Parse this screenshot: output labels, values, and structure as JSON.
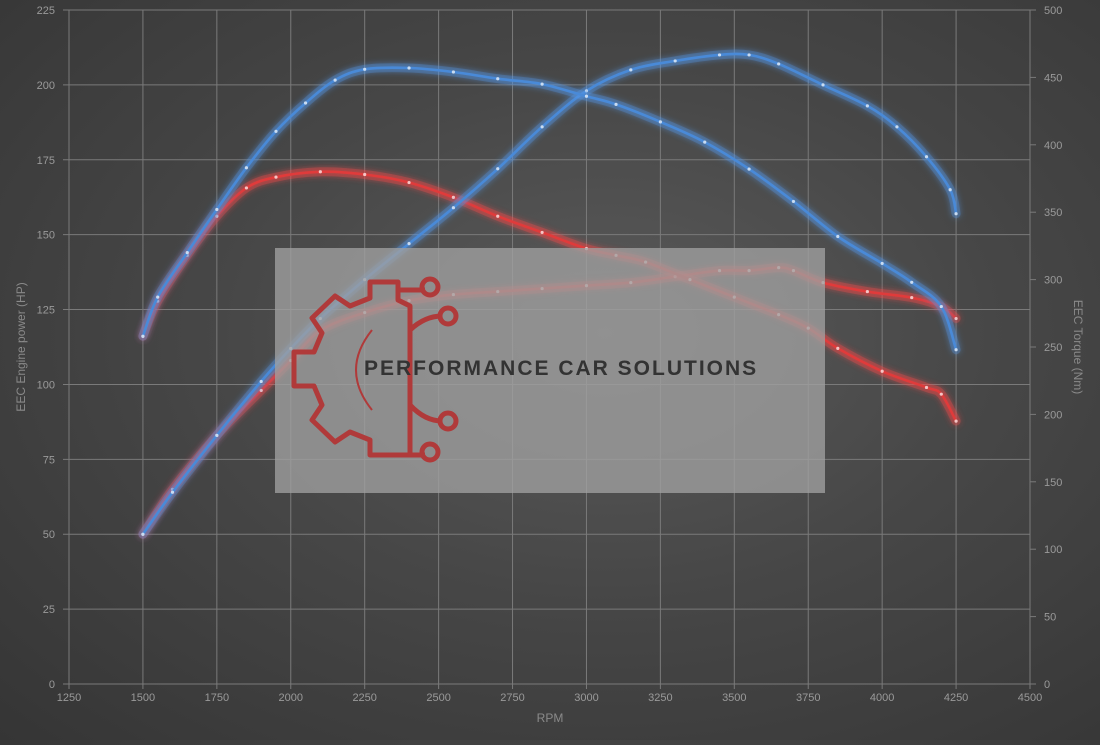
{
  "colors": {
    "background": "#474747",
    "grid": "#7a7a7a",
    "tick_text": "#9a9a9a",
    "power_color": "#e03a3a",
    "torque_color": "#4a8ad8",
    "watermark_box": "#a0a0a0",
    "logo_color": "#b03a3a"
  },
  "watermark": {
    "text": "PERFORMANCE CAR SOLUTIONS",
    "logo": "gear-circuit-icon"
  },
  "chart_data": {
    "type": "line",
    "title": "",
    "xlabel": "RPM",
    "ylabel_left": "EEC Engine power (HP)",
    "ylabel_right": "EEC Torque (Nm)",
    "xlim": [
      1250,
      4500
    ],
    "ylim_left": [
      0,
      225
    ],
    "ylim_right": [
      0,
      500
    ],
    "x_ticks": [
      1250,
      1500,
      1750,
      2000,
      2250,
      2500,
      2750,
      3000,
      3250,
      3500,
      3750,
      4000,
      4250,
      4500
    ],
    "y_left_ticks": [
      0,
      25,
      50,
      75,
      100,
      125,
      150,
      175,
      200,
      225
    ],
    "y_right_ticks": [
      0,
      50,
      100,
      150,
      200,
      250,
      300,
      350,
      400,
      450,
      500
    ],
    "grid": true,
    "legend": "none",
    "series": [
      {
        "axis": "left",
        "color": "#e03a3a",
        "glow": "#ff5050",
        "points": [
          [
            1500,
            50
          ],
          [
            1600,
            65
          ],
          [
            1750,
            83
          ],
          [
            1900,
            98
          ],
          [
            2000,
            108
          ],
          [
            2100,
            118
          ],
          [
            2250,
            124
          ],
          [
            2400,
            128
          ],
          [
            2550,
            130
          ],
          [
            2700,
            131
          ],
          [
            2850,
            132
          ],
          [
            3000,
            133
          ],
          [
            3150,
            134
          ],
          [
            3300,
            136
          ],
          [
            3450,
            138
          ],
          [
            3550,
            138
          ],
          [
            3650,
            139
          ],
          [
            3700,
            138
          ],
          [
            3800,
            134
          ],
          [
            3950,
            131
          ],
          [
            4100,
            129
          ],
          [
            4200,
            126
          ],
          [
            4250,
            122
          ]
        ]
      },
      {
        "axis": "right",
        "color": "#e03a3a",
        "glow": "#ff5050",
        "points": [
          [
            1500,
            258
          ],
          [
            1550,
            284
          ],
          [
            1650,
            318
          ],
          [
            1750,
            347
          ],
          [
            1850,
            368
          ],
          [
            1950,
            376
          ],
          [
            2100,
            380
          ],
          [
            2250,
            378
          ],
          [
            2400,
            372
          ],
          [
            2550,
            361
          ],
          [
            2700,
            347
          ],
          [
            2850,
            335
          ],
          [
            3000,
            323
          ],
          [
            3100,
            318
          ],
          [
            3200,
            313
          ],
          [
            3350,
            300
          ],
          [
            3500,
            287
          ],
          [
            3650,
            274
          ],
          [
            3750,
            264
          ],
          [
            3850,
            249
          ],
          [
            4000,
            232
          ],
          [
            4150,
            220
          ],
          [
            4200,
            215
          ],
          [
            4250,
            195
          ]
        ]
      },
      {
        "axis": "left",
        "color": "#4a8ad8",
        "glow": "#5a9ae8",
        "points": [
          [
            1500,
            50
          ],
          [
            1600,
            64
          ],
          [
            1750,
            83
          ],
          [
            1900,
            101
          ],
          [
            2000,
            112
          ],
          [
            2100,
            122
          ],
          [
            2250,
            135
          ],
          [
            2400,
            147
          ],
          [
            2550,
            159
          ],
          [
            2700,
            172
          ],
          [
            2850,
            186
          ],
          [
            3000,
            198
          ],
          [
            3150,
            205
          ],
          [
            3300,
            208
          ],
          [
            3450,
            210
          ],
          [
            3550,
            210
          ],
          [
            3650,
            207
          ],
          [
            3800,
            200
          ],
          [
            3950,
            193
          ],
          [
            4050,
            186
          ],
          [
            4150,
            176
          ],
          [
            4230,
            165
          ],
          [
            4250,
            157
          ]
        ]
      },
      {
        "axis": "right",
        "color": "#4a8ad8",
        "glow": "#5a9ae8",
        "points": [
          [
            1500,
            258
          ],
          [
            1550,
            287
          ],
          [
            1650,
            320
          ],
          [
            1750,
            352
          ],
          [
            1850,
            383
          ],
          [
            1950,
            410
          ],
          [
            2050,
            431
          ],
          [
            2150,
            448
          ],
          [
            2250,
            456
          ],
          [
            2400,
            457
          ],
          [
            2550,
            454
          ],
          [
            2700,
            449
          ],
          [
            2850,
            445
          ],
          [
            3000,
            436
          ],
          [
            3100,
            430
          ],
          [
            3250,
            417
          ],
          [
            3400,
            402
          ],
          [
            3550,
            382
          ],
          [
            3700,
            358
          ],
          [
            3850,
            332
          ],
          [
            4000,
            312
          ],
          [
            4100,
            298
          ],
          [
            4200,
            280
          ],
          [
            4250,
            248
          ]
        ]
      }
    ]
  }
}
